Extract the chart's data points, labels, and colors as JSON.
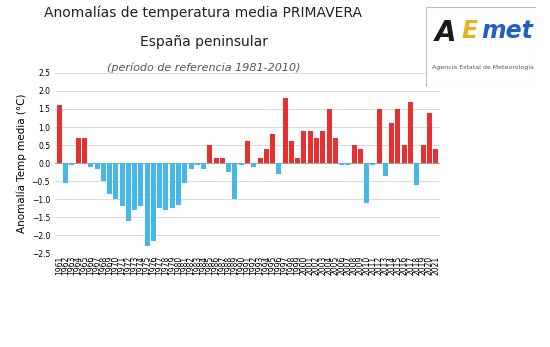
{
  "years": [
    1961,
    1962,
    1963,
    1964,
    1965,
    1966,
    1967,
    1968,
    1969,
    1970,
    1971,
    1972,
    1973,
    1974,
    1975,
    1976,
    1977,
    1978,
    1979,
    1980,
    1981,
    1982,
    1983,
    1984,
    1985,
    1986,
    1987,
    1988,
    1989,
    1990,
    1991,
    1992,
    1993,
    1994,
    1995,
    1996,
    1997,
    1998,
    1999,
    2000,
    2001,
    2002,
    2003,
    2004,
    2005,
    2006,
    2007,
    2008,
    2009,
    2010,
    2011,
    2012,
    2013,
    2014,
    2015,
    2016,
    2017,
    2018,
    2019,
    2020,
    2021
  ],
  "values": [
    1.6,
    -0.55,
    -0.05,
    0.7,
    0.7,
    -0.1,
    -0.15,
    -0.5,
    -0.85,
    -1.0,
    -1.2,
    -1.6,
    -1.3,
    -1.2,
    -2.3,
    -2.15,
    -1.25,
    -1.3,
    -1.25,
    -1.15,
    -0.55,
    -0.15,
    -0.05,
    -0.15,
    0.5,
    0.13,
    0.13,
    -0.25,
    -1.0,
    -0.05,
    0.6,
    -0.1,
    0.13,
    0.4,
    0.8,
    -0.3,
    1.8,
    0.6,
    0.13,
    0.9,
    0.9,
    0.7,
    0.9,
    1.5,
    0.7,
    -0.05,
    -0.05,
    0.5,
    0.4,
    -1.1,
    -0.05,
    1.5,
    -0.35,
    1.1,
    1.5,
    0.5,
    1.7,
    -0.6,
    0.5,
    1.4,
    0.4
  ],
  "color_positive": "#e83030",
  "color_negative": "#45b8e8",
  "title_line1": "Anomalías de temperatura media PRIMAVERA",
  "title_line2": "España peninsular",
  "title_line3": "(período de referencia 1981-2010)",
  "ylabel": "Anomalía Temp media (°C)",
  "ylim": [
    -2.5,
    2.5
  ],
  "yticks": [
    -2.5,
    -2.0,
    -1.5,
    -1.0,
    -0.5,
    0.0,
    0.5,
    1.0,
    1.5,
    2.0,
    2.5
  ],
  "bg_color": "#ffffff",
  "grid_color": "#cccccc",
  "title_fontsize": 10,
  "subtitle_fontsize": 10,
  "subsubtitle_fontsize": 8,
  "ylabel_fontsize": 7.5,
  "tick_fontsize": 5.5
}
